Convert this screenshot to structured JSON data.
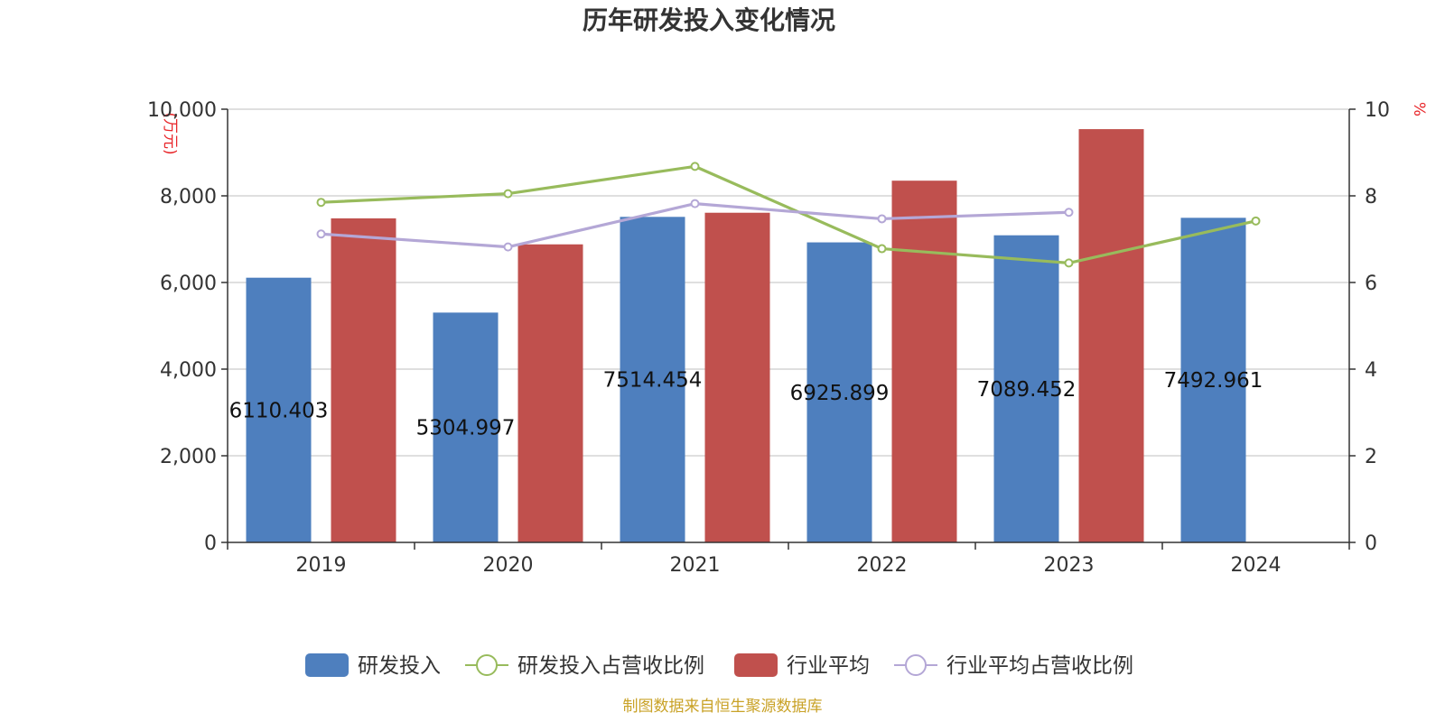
{
  "chart_data": {
    "type": "bar",
    "title": "历年研发投入变化情况",
    "categories": [
      "2019",
      "2020",
      "2021",
      "2022",
      "2023",
      "2024"
    ],
    "y_left": {
      "unit": "(万元)",
      "range": [
        0,
        10000
      ],
      "ticks": [
        "0",
        "2,000",
        "4,000",
        "6,000",
        "8,000",
        "10,000"
      ]
    },
    "y_right": {
      "unit": "%",
      "range": [
        0,
        10
      ],
      "ticks": [
        "0",
        "2",
        "4",
        "6",
        "8",
        "10"
      ]
    },
    "grid": true,
    "legend_position": "bottom",
    "series": [
      {
        "name": "研发投入",
        "type": "bar",
        "axis": "left",
        "color": "#4e7fbe",
        "values": [
          6110.403,
          5304.997,
          7514.454,
          6925.899,
          7089.452,
          7492.961
        ],
        "labels": [
          "6110.403",
          "5304.997",
          "7514.454",
          "6925.899",
          "7089.452",
          "7492.961"
        ]
      },
      {
        "name": "研发投入占营收比例",
        "type": "line",
        "axis": "right",
        "color": "#98bb5c",
        "values": [
          7.85,
          8.05,
          8.68,
          6.78,
          6.45,
          7.42
        ]
      },
      {
        "name": "行业平均",
        "type": "bar",
        "axis": "left",
        "color": "#c0504d",
        "values": [
          7480,
          6880,
          7610,
          8350,
          9540,
          null
        ]
      },
      {
        "name": "行业平均占营收比例",
        "type": "line",
        "axis": "right",
        "color": "#b4a7d6",
        "values": [
          7.12,
          6.82,
          7.82,
          7.47,
          7.62,
          null
        ]
      }
    ],
    "source": "制图数据来自恒生聚源数据库"
  }
}
